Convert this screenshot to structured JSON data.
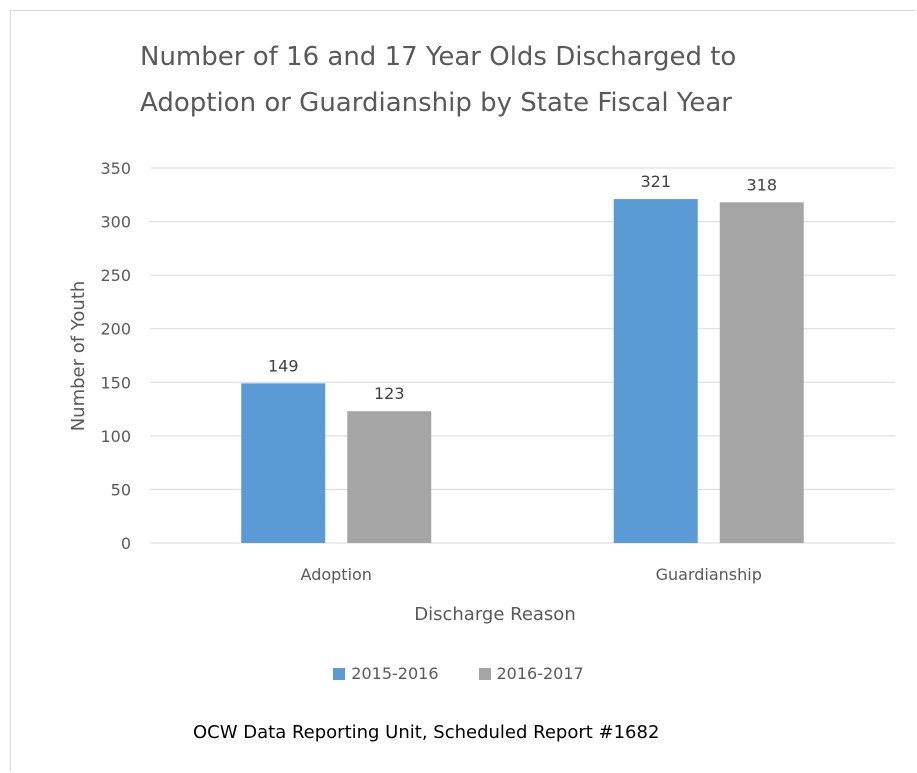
{
  "chart_data": {
    "type": "bar",
    "title_lines": [
      "Number of 16 and 17 Year Olds Discharged to",
      "Adoption or Guardianship by State Fiscal Year"
    ],
    "xlabel": "Discharge Reason",
    "ylabel": "Number of Youth",
    "categories": [
      "Adoption",
      "Guardianship"
    ],
    "series": [
      {
        "name": "2015-2016",
        "values": [
          149,
          321
        ],
        "color": "#5b9bd5"
      },
      {
        "name": "2016-2017",
        "values": [
          123,
          318
        ],
        "color": "#a5a5a5"
      }
    ],
    "ylim": [
      0,
      350
    ],
    "yticks": [
      0,
      50,
      100,
      150,
      200,
      250,
      300,
      350
    ],
    "grid": true,
    "legend_position": "bottom"
  },
  "footer": {
    "note": "OCW Data Reporting Unit, Scheduled Report #1682"
  }
}
